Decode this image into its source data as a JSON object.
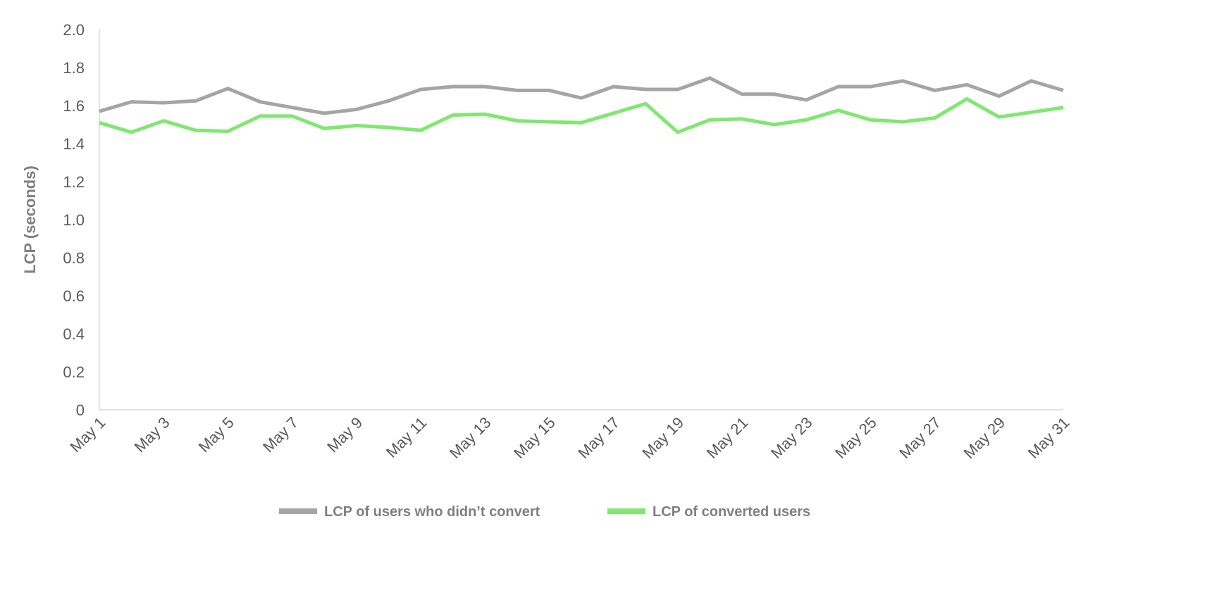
{
  "chart_data": {
    "type": "line",
    "title": "",
    "xlabel": "",
    "ylabel": "LCP (seconds)",
    "ylim": [
      0,
      2.0
    ],
    "yticks": [
      "0",
      "0.2",
      "0.4",
      "0.6",
      "0.8",
      "1.0",
      "1.2",
      "1.4",
      "1.6",
      "1.8",
      "2.0"
    ],
    "grid": false,
    "legend_position": "bottom",
    "x": [
      "May 1",
      "May 2",
      "May 3",
      "May 4",
      "May 5",
      "May 6",
      "May 7",
      "May 8",
      "May 9",
      "May 10",
      "May 11",
      "May 12",
      "May 13",
      "May 14",
      "May 15",
      "May 16",
      "May 17",
      "May 18",
      "May 19",
      "May 20",
      "May 21",
      "May 22",
      "May 23",
      "May 24",
      "May 25",
      "May 26",
      "May 27",
      "May 28",
      "May 29",
      "May 30",
      "May 31"
    ],
    "xtick_labels": [
      "May 1",
      "May 3",
      "May 5",
      "May 7",
      "May 9",
      "May 11",
      "May 13",
      "May 15",
      "May 17",
      "May 19",
      "May 21",
      "May 23",
      "May 25",
      "May 27",
      "May 29",
      "May 31"
    ],
    "series": [
      {
        "name": "LCP of users who didn’t convert",
        "color": "#a5a5a5",
        "values": [
          1.57,
          1.62,
          1.615,
          1.625,
          1.69,
          1.62,
          1.59,
          1.56,
          1.58,
          1.625,
          1.685,
          1.7,
          1.7,
          1.68,
          1.68,
          1.64,
          1.7,
          1.685,
          1.685,
          1.745,
          1.66,
          1.66,
          1.63,
          1.7,
          1.7,
          1.73,
          1.68,
          1.71,
          1.65,
          1.73,
          1.68
        ]
      },
      {
        "name": "LCP of converted users",
        "color": "#7ee86f",
        "values": [
          1.51,
          1.46,
          1.52,
          1.47,
          1.465,
          1.545,
          1.545,
          1.48,
          1.495,
          1.485,
          1.47,
          1.55,
          1.555,
          1.52,
          1.515,
          1.51,
          1.56,
          1.61,
          1.46,
          1.525,
          1.53,
          1.5,
          1.525,
          1.575,
          1.525,
          1.515,
          1.535,
          1.635,
          1.54,
          1.565,
          1.59
        ]
      }
    ]
  }
}
